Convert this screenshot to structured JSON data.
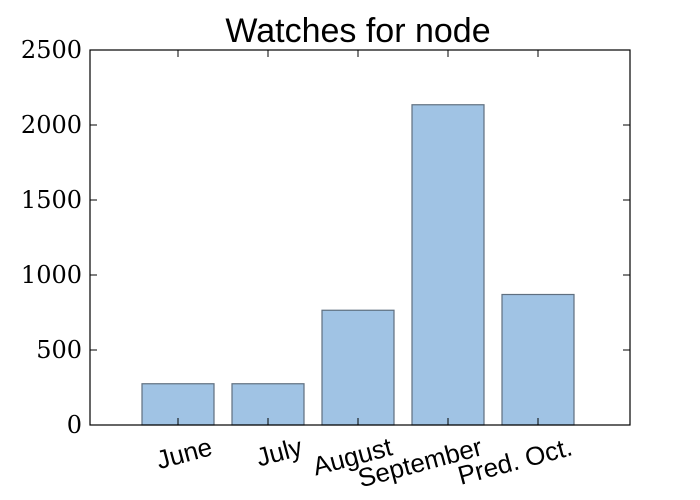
{
  "chart_data": {
    "type": "bar",
    "title": "Watches for node",
    "xlabel": "",
    "ylabel": "",
    "categories": [
      "June",
      "July",
      "August",
      "September",
      "Pred. Oct."
    ],
    "values": [
      275,
      275,
      765,
      2135,
      870
    ],
    "ylim": [
      0,
      2500
    ],
    "yticks": [
      0,
      500,
      1000,
      1500,
      2000,
      2500
    ],
    "ytick_labels": [
      "0",
      "500",
      "1000",
      "1500",
      "2000",
      "2500"
    ],
    "grid": false,
    "legend": "none",
    "colors": {
      "bar_fill": "#a0c3e4",
      "bar_edge": "#5f6f7f",
      "axis": "#000000"
    }
  }
}
